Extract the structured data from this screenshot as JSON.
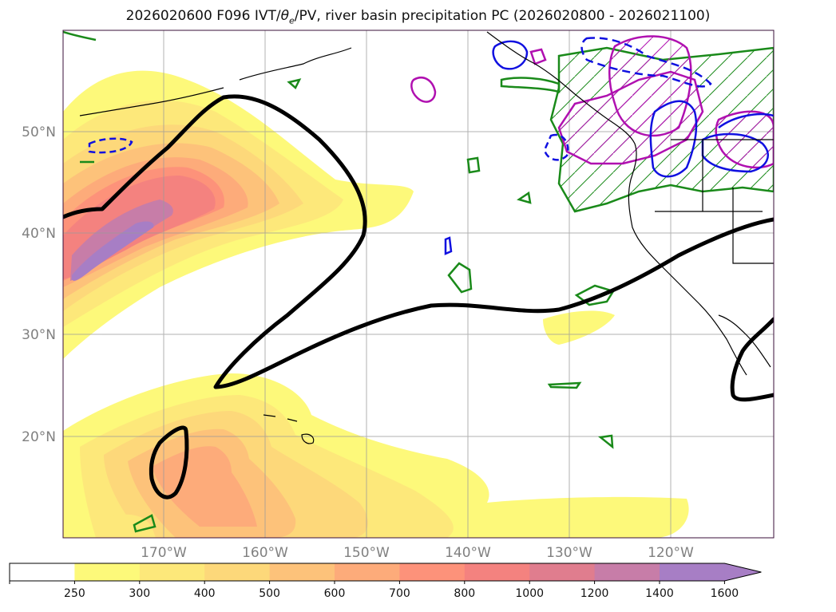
{
  "title": {
    "prefix": "2026020600 F096 IVT/",
    "theta": "θ",
    "theta_sub": "e",
    "suffix": "/PV, river basin precipitation PC (2026020800 - 2026021100)"
  },
  "map": {
    "lat_labels": [
      "50°N",
      "40°N",
      "30°N",
      "20°N"
    ],
    "lon_labels": [
      "170°W",
      "160°W",
      "150°W",
      "140°W",
      "130°W",
      "120°W"
    ],
    "contour_colors": {
      "thick": "#000000",
      "green": "#1a8a1a",
      "blue": "#1010e0",
      "magenta": "#b010b0"
    }
  },
  "colorbar": {
    "labels": [
      "250",
      "300",
      "400",
      "500",
      "600",
      "700",
      "800",
      "1000",
      "1200",
      "1400",
      "1600"
    ],
    "colors": [
      "#ffffff",
      "#fdf97a",
      "#fde87a",
      "#fdd87a",
      "#fdc27a",
      "#fdab7a",
      "#fd927a",
      "#f4827f",
      "#e07d8e",
      "#c77da8",
      "#a77ec5"
    ],
    "extend_color": "#a77ec5"
  }
}
